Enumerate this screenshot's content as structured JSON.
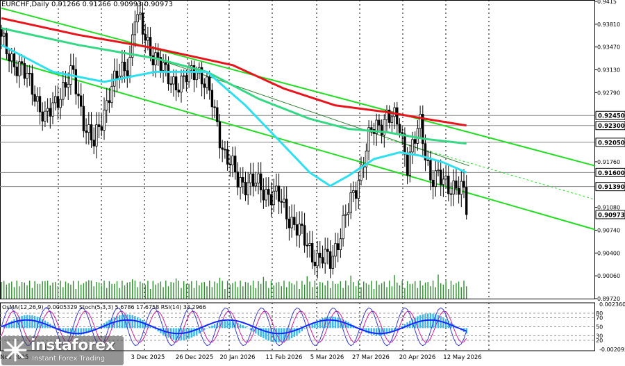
{
  "title": "EURCHF,Daily  0.91266 0.91266 0.90993 0.90973",
  "indicator_label": "OsMA(12,26,9) -0.0005329  Stoch(5,3,3) 5.6786 17.6758  RSI(14) 33.2966",
  "brand": {
    "name": "instaforex",
    "tagline": "Instant Forex Trading"
  },
  "colors": {
    "candle": "#000000",
    "ma_red": "#e8141c",
    "ma_green": "#35d884",
    "ma_cyan": "#2ee0ee",
    "channel": "#22dd22",
    "level_line": "#8a8a8a",
    "osma_hist": "#38b8e8",
    "stoch_main": "#1428ff",
    "rsi": "#9c27b0",
    "price_box": "#ffffff"
  },
  "chart_data": {
    "type": "candlestick",
    "symbol": "EURCHF",
    "timeframe": "Daily",
    "ylim": [
      0.8972,
      0.9415
    ],
    "y_ticks": [
      0.9415,
      0.9381,
      0.9347,
      0.9313,
      0.9279,
      0.9176,
      0.9108,
      0.9074,
      0.904,
      0.9006,
      0.8972
    ],
    "y_tick_labels": [
      "0.9415",
      "0.93810",
      "0.93470",
      "0.93130",
      "0.92790",
      "0.91760",
      "0.91080",
      "0.90740",
      "0.90400",
      "0.90060",
      "0.89720"
    ],
    "levels": [
      {
        "value": 0.9245,
        "label": "0.92450"
      },
      {
        "value": 0.923,
        "label": "0.92300"
      },
      {
        "value": 0.9205,
        "label": "0.92050"
      },
      {
        "value": 0.916,
        "label": "0.91600"
      },
      {
        "value": 0.9139,
        "label": "0.91390"
      }
    ],
    "current_price": {
      "value": 0.90973,
      "label": "0.90973"
    },
    "x_labels": [
      "26 Oct 2025",
      "18 Nov 2025",
      "3 Dec 2025",
      "26 Dec 2025",
      "20 Jan 2026",
      "11 Feb 2026",
      "5 Mar 2026",
      "27 Mar 2026",
      "20 Apr 2026",
      "12 May 2026"
    ],
    "anchors": [
      [
        0,
        0.9355
      ],
      [
        6,
        0.932
      ],
      [
        12,
        0.929
      ],
      [
        17,
        0.9235
      ],
      [
        22,
        0.9275
      ],
      [
        28,
        0.9305
      ],
      [
        33,
        0.9225
      ],
      [
        36,
        0.92
      ],
      [
        42,
        0.928
      ],
      [
        50,
        0.933
      ],
      [
        52,
        0.9395
      ],
      [
        58,
        0.9345
      ],
      [
        64,
        0.9305
      ],
      [
        70,
        0.929
      ],
      [
        76,
        0.932
      ],
      [
        82,
        0.9265
      ],
      [
        87,
        0.9185
      ],
      [
        92,
        0.915
      ],
      [
        100,
        0.914
      ],
      [
        108,
        0.912
      ],
      [
        116,
        0.907
      ],
      [
        123,
        0.903
      ],
      [
        128,
        0.903
      ],
      [
        133,
        0.908
      ],
      [
        138,
        0.914
      ],
      [
        144,
        0.922
      ],
      [
        150,
        0.9245
      ],
      [
        155,
        0.923
      ],
      [
        158,
        0.9175
      ],
      [
        163,
        0.923
      ],
      [
        167,
        0.9155
      ],
      [
        172,
        0.9145
      ],
      [
        177,
        0.914
      ],
      [
        180,
        0.9125
      ],
      [
        181,
        0.9097
      ]
    ],
    "moving_averages": [
      {
        "color": "red",
        "points": [
          [
            0,
            0.939
          ],
          [
            30,
            0.9365
          ],
          [
            60,
            0.9345
          ],
          [
            90,
            0.932
          ],
          [
            110,
            0.9285
          ],
          [
            130,
            0.926
          ],
          [
            150,
            0.925
          ],
          [
            165,
            0.924
          ],
          [
            181,
            0.923
          ]
        ]
      },
      {
        "color": "green",
        "points": [
          [
            0,
            0.9375
          ],
          [
            30,
            0.935
          ],
          [
            60,
            0.933
          ],
          [
            80,
            0.931
          ],
          [
            100,
            0.927
          ],
          [
            120,
            0.924
          ],
          [
            135,
            0.9225
          ],
          [
            150,
            0.922
          ],
          [
            165,
            0.921
          ],
          [
            181,
            0.9203
          ]
        ]
      },
      {
        "color": "cyan",
        "points": [
          [
            0,
            0.935
          ],
          [
            20,
            0.931
          ],
          [
            40,
            0.9295
          ],
          [
            60,
            0.931
          ],
          [
            80,
            0.931
          ],
          [
            95,
            0.926
          ],
          [
            110,
            0.92
          ],
          [
            120,
            0.916
          ],
          [
            128,
            0.914
          ],
          [
            135,
            0.9155
          ],
          [
            145,
            0.918
          ],
          [
            155,
            0.919
          ],
          [
            163,
            0.9185
          ],
          [
            172,
            0.9175
          ],
          [
            181,
            0.916
          ]
        ]
      }
    ],
    "channel_lines": [
      {
        "from": [
          0,
          0.9405
        ],
        "to": [
          231,
          0.917
        ]
      },
      {
        "from": [
          0,
          0.933
        ],
        "to": [
          231,
          0.9075
        ]
      }
    ],
    "indicator_ylim": [
      -0.002095,
      0.00236
    ],
    "indicator_ticks": [
      {
        "value": 0.00236,
        "label": "0.002360"
      },
      {
        "value": -0.002095,
        "label": "-0.002095"
      }
    ],
    "stoch_levels": [
      {
        "value": 80,
        "label": "80"
      },
      {
        "value": 70,
        "label": "70"
      },
      {
        "value": 50,
        "label": "50"
      },
      {
        "value": 30,
        "label": "30"
      },
      {
        "value": 20,
        "label": "20"
      }
    ],
    "osma_current": -0.0005329,
    "stoch_main_current": 5.6786,
    "stoch_signal_current": 17.6758,
    "rsi_current": 33.2966
  }
}
